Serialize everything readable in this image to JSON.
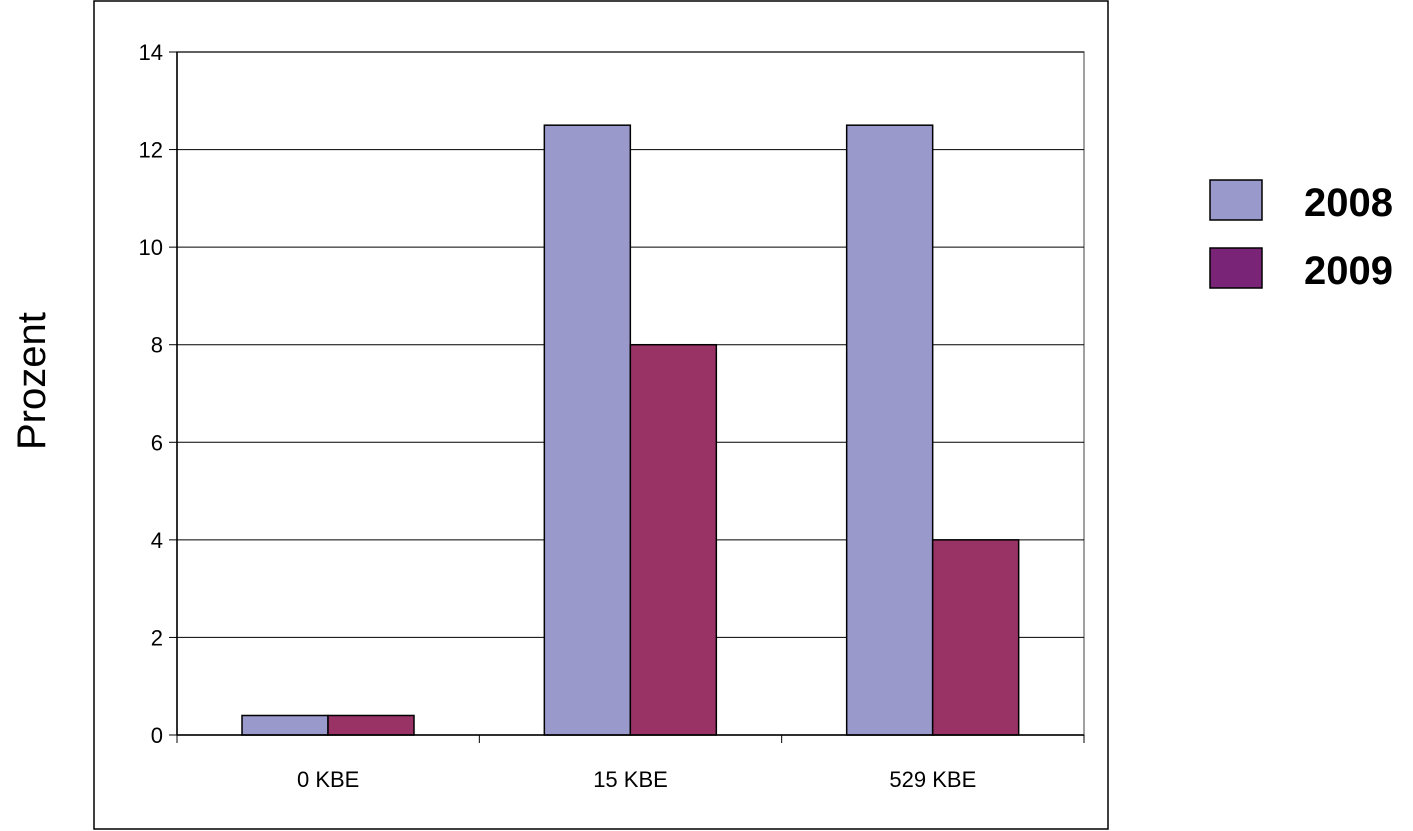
{
  "chart_data": {
    "type": "bar",
    "categories": [
      "0 KBE",
      "15 KBE",
      "529 KBE"
    ],
    "series": [
      {
        "name": "2008",
        "values": [
          0.4,
          12.5,
          12.5
        ],
        "color": "#9999cc"
      },
      {
        "name": "2009",
        "values": [
          0.4,
          8,
          4
        ],
        "color": "#993366"
      }
    ],
    "legend_swatch_colors": [
      "#9999cc",
      "#7a2478"
    ],
    "ylabel": "Prozent",
    "xlabel": "",
    "ylim": [
      0,
      14
    ],
    "yticks": [
      0,
      2,
      4,
      6,
      8,
      10,
      12,
      14
    ],
    "grid": true,
    "legend_position": "right"
  }
}
